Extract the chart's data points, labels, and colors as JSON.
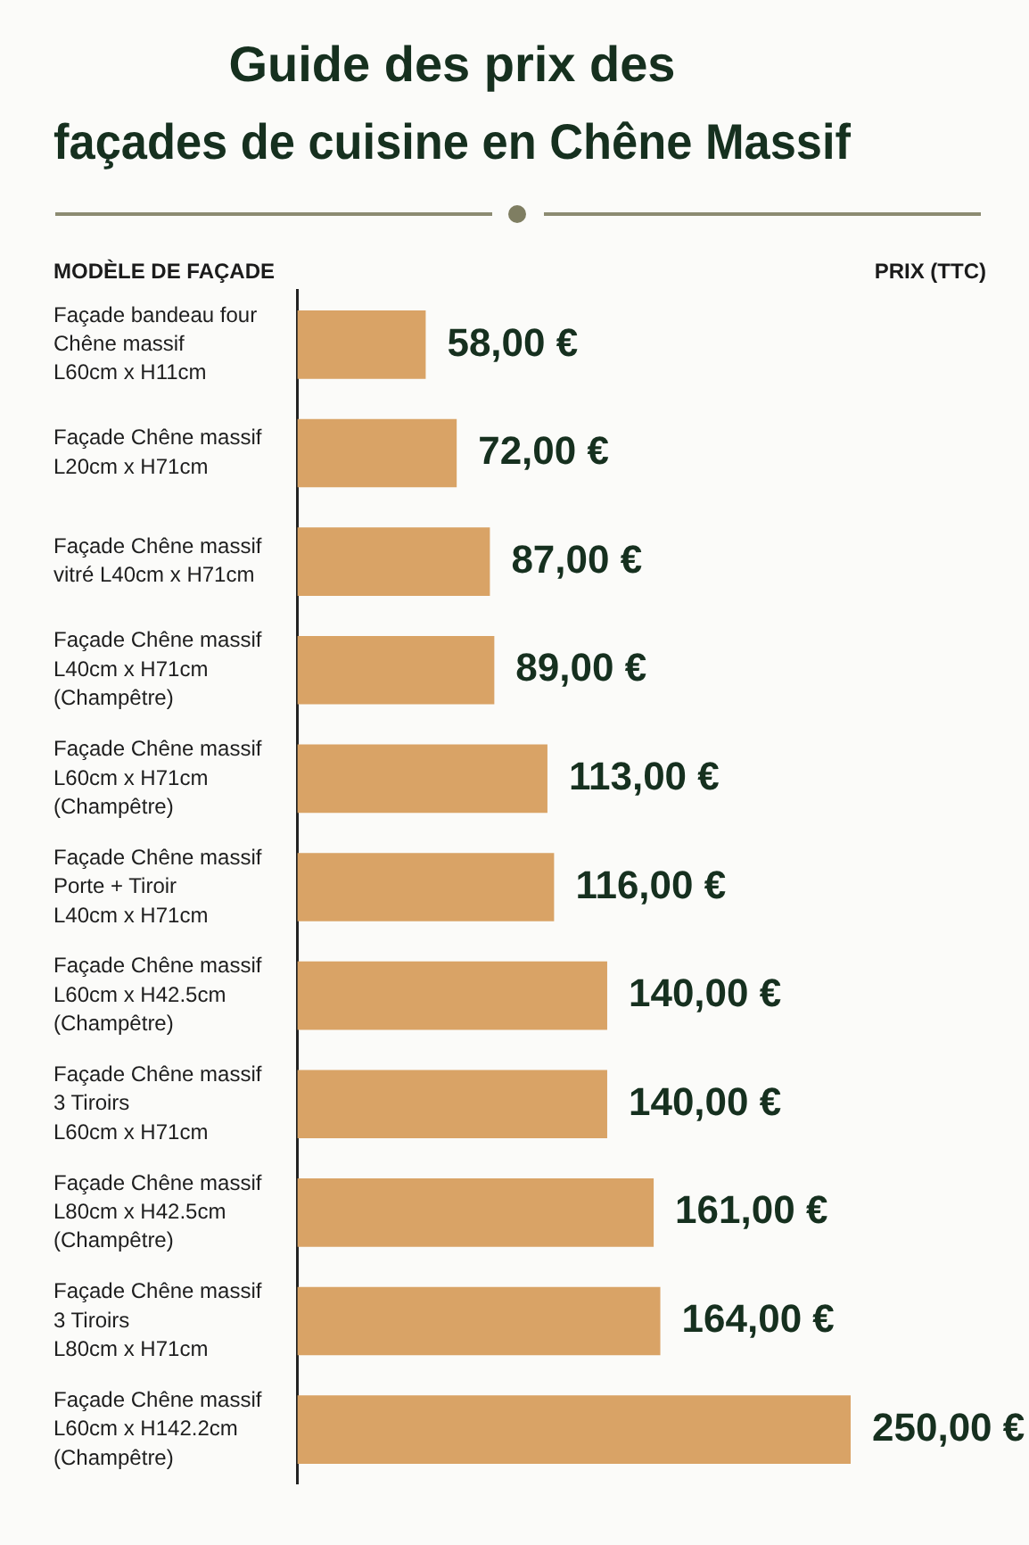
{
  "chart_data": {
    "type": "bar",
    "orientation": "horizontal",
    "title": "Guide des prix des\nfaçades de cuisine en Chêne Massif",
    "ylabel": "MODÈLE DE FAÇADE",
    "xlabel": "PRIX (TTC)",
    "categories": [
      "Façade bandeau four\nChêne massif\nL60cm x H11cm",
      "Façade Chêne massif\nL20cm x H71cm",
      "Façade Chêne massif\nvitré L40cm x H71cm",
      "Façade Chêne massif\nL40cm x H71cm\n(Champêtre)",
      "Façade Chêne massif\nL60cm x H71cm\n(Champêtre)",
      "Façade Chêne massif\nPorte + Tiroir\nL40cm x H71cm",
      "Façade Chêne massif\nL60cm x H42.5cm\n(Champêtre)",
      "Façade Chêne massif\n3 Tiroirs\nL60cm x H71cm",
      "Façade Chêne massif\nL80cm x H42.5cm\n(Champêtre)",
      "Façade Chêne massif\n3 Tiroirs\nL80cm x H71cm",
      "Façade Chêne massif\nL60cm x H142.2cm\n(Champêtre)"
    ],
    "values": [
      58,
      72,
      87,
      89,
      113,
      116,
      140,
      140,
      161,
      164,
      250
    ],
    "value_labels": [
      "58,00 €",
      "72,00 €",
      "87,00 €",
      "89,00 €",
      "113,00 €",
      "116,00 €",
      "140,00 €",
      "140,00 €",
      "161,00 €",
      "164,00 €",
      "250,00 €"
    ],
    "color": "#d9a366",
    "tick_labels": "y"
  }
}
